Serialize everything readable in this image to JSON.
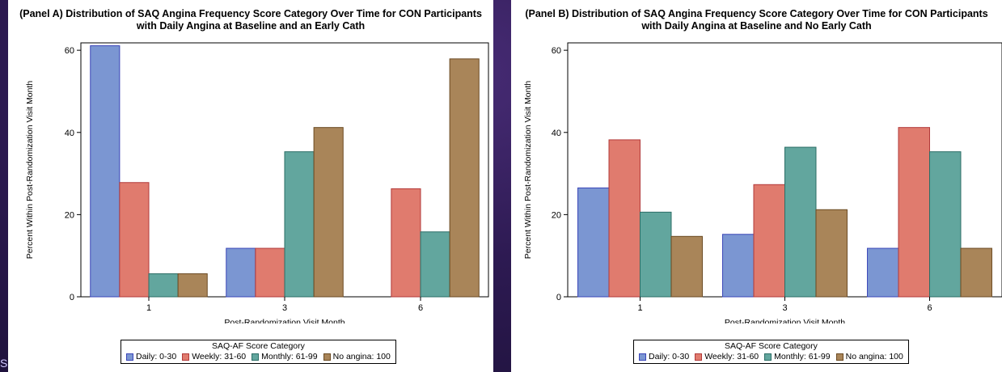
{
  "slide": {
    "corner_text": "S"
  },
  "legend": {
    "title": "SAQ-AF Score Category",
    "items": [
      "Daily: 0-30",
      "Weekly: 31-60",
      "Monthly: 61-99",
      "No angina: 100"
    ]
  },
  "colors": {
    "fills": [
      "#7b96d2",
      "#e07b6e",
      "#62a69e",
      "#a98559"
    ],
    "strokes": [
      "#3a45b8",
      "#b23a3a",
      "#2b6e66",
      "#6b4a22"
    ]
  },
  "chart_data": [
    {
      "type": "bar",
      "title": "(Panel A) Distribution of SAQ Angina Frequency Score Category Over Time for CON Participants with Daily Angina at Baseline and an Early Cath",
      "xlabel": "Post-Randomization Visit Month",
      "ylabel": "Percent Within Post-Randomization Visit Month",
      "categories": [
        "1",
        "3",
        "6"
      ],
      "yticks": [
        "0",
        "20",
        "40",
        "60"
      ],
      "ylim": [
        0,
        60
      ],
      "series": [
        {
          "name": "Daily: 0-30",
          "values": [
            61.1,
            11.8,
            0
          ]
        },
        {
          "name": "Weekly: 31-60",
          "values": [
            27.8,
            11.8,
            26.3
          ]
        },
        {
          "name": "Monthly: 61-99",
          "values": [
            5.6,
            35.3,
            15.8
          ]
        },
        {
          "name": "No angina: 100",
          "values": [
            5.6,
            41.2,
            57.9
          ]
        }
      ],
      "grid": false,
      "legend_position": "bottom"
    },
    {
      "type": "bar",
      "title": "(Panel B) Distribution of SAQ Angina Frequency Score Category Over Time for CON Participants with Daily Angina at Baseline and No Early Cath",
      "xlabel": "Post-Randomization Visit Month",
      "ylabel": "Percent Within Post-Randomization Visit Month",
      "categories": [
        "1",
        "3",
        "6"
      ],
      "yticks": [
        "0",
        "20",
        "40",
        "60"
      ],
      "ylim": [
        0,
        60
      ],
      "series": [
        {
          "name": "Daily: 0-30",
          "values": [
            26.5,
            15.2,
            11.8
          ]
        },
        {
          "name": "Weekly: 31-60",
          "values": [
            38.2,
            27.3,
            41.2
          ]
        },
        {
          "name": "Monthly: 61-99",
          "values": [
            20.6,
            36.4,
            35.3
          ]
        },
        {
          "name": "No angina: 100",
          "values": [
            14.7,
            21.2,
            11.8
          ]
        }
      ],
      "grid": false,
      "legend_position": "bottom"
    }
  ]
}
